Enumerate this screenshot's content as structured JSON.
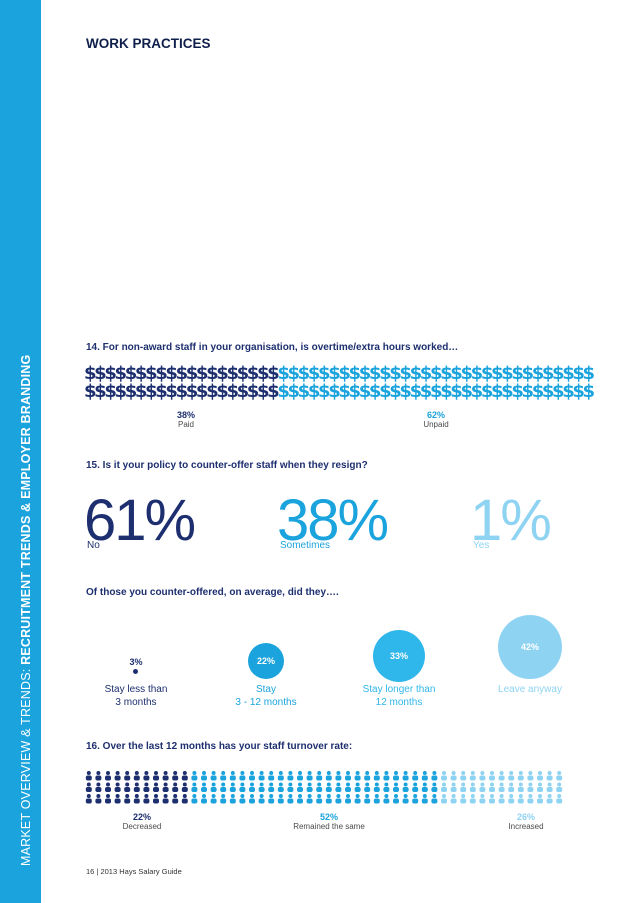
{
  "sidebar": {
    "light": "MARKET OVERVIEW & TRENDS: ",
    "bold": "RECRUITMENT TRENDS & EMPLOYER BRANDING"
  },
  "heading": "WORK PRACTICES",
  "q14": {
    "question": "14.  For non-award staff in your organisation, is overtime/extra hours worked…",
    "paid": {
      "pct": "38%",
      "label": "Paid",
      "value": 38,
      "color": "#1d2f6f"
    },
    "unpaid": {
      "pct": "62%",
      "label": "Unpaid",
      "value": 62,
      "color": "#1aa3dc"
    },
    "icon": "dollar-icon"
  },
  "q15": {
    "question": "15.  Is it your policy to counter-offer staff when they resign?",
    "answers": [
      {
        "pct": "61%",
        "label": "No",
        "color": "#1d2f6f"
      },
      {
        "pct": "38%",
        "label": "Sometimes",
        "color": "#1aa3dc"
      },
      {
        "pct": "1%",
        "label": "Yes",
        "color": "#8fd3f3"
      }
    ],
    "sub_question": "Of those you counter-offered, on average, did they….",
    "outcomes": [
      {
        "pct": "3%",
        "label1": "Stay less than",
        "label2": "3 months",
        "value": 3,
        "color": "#1d2f6f"
      },
      {
        "pct": "22%",
        "label1": "Stay",
        "label2": "3 - 12 months",
        "value": 22,
        "color": "#1aa3dc"
      },
      {
        "pct": "33%",
        "label1": "Stay longer than",
        "label2": "12 months",
        "value": 33,
        "color": "#2fb6ea"
      },
      {
        "pct": "42%",
        "label1": "Leave anyway",
        "label2": "",
        "value": 42,
        "color": "#8fd3f3"
      }
    ]
  },
  "q16": {
    "question": "16.  Over the last 12 months has your staff turnover rate:",
    "icon": "person-icon",
    "segments": [
      {
        "pct": "22%",
        "label": "Decreased",
        "value": 22,
        "color": "#1d2f6f"
      },
      {
        "pct": "52%",
        "label": "Remained the same",
        "value": 52,
        "color": "#1aa3dc"
      },
      {
        "pct": "26%",
        "label": "Increased",
        "value": 26,
        "color": "#8fd3f3"
      }
    ]
  },
  "footer": "16 | 2013 Hays Salary Guide"
}
